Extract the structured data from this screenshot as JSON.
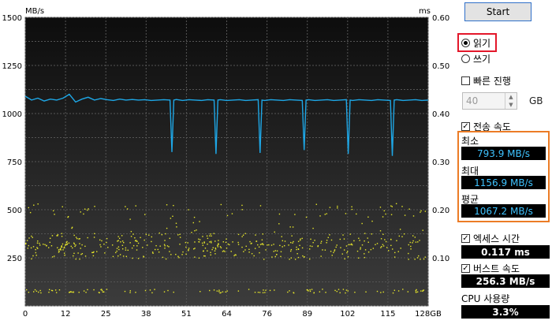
{
  "chart_data": {
    "type": "line",
    "y_left_label": "MB/s",
    "y_right_label": "ms",
    "y_left_ticks": [
      "1500",
      "1250",
      "1000",
      "750",
      "500",
      "250"
    ],
    "y_right_ticks": [
      "0.60",
      "0.50",
      "0.40",
      "0.30",
      "0.20",
      "0.10"
    ],
    "x_ticks": [
      "0",
      "12",
      "25",
      "38",
      "51",
      "64",
      "76",
      "89",
      "102",
      "115",
      "128GB"
    ],
    "xlim": [
      0,
      128
    ],
    "ylim_left": [
      0,
      1500
    ],
    "ylim_right": [
      0,
      0.6
    ],
    "grid": true,
    "colors": {
      "background": "#2b2b2b",
      "grid": "#555555",
      "transfer": "#1ea7e6",
      "access": "#e8e82a"
    },
    "series": [
      {
        "values_desc": "transfer speed",
        "x": [
          0,
          2,
          4,
          6,
          8,
          10,
          12,
          14,
          16,
          18,
          20,
          22,
          24,
          26,
          28,
          30,
          32,
          34,
          36,
          38,
          40,
          42,
          44,
          46,
          46.6,
          47.2,
          48,
          50,
          52,
          54,
          56,
          58,
          60,
          60.6,
          61.2,
          62,
          64,
          66,
          68,
          70,
          72,
          74,
          74.6,
          75.2,
          76,
          78,
          80,
          82,
          84,
          86,
          88,
          88.6,
          89.2,
          90,
          92,
          94,
          96,
          98,
          100,
          102,
          102.6,
          103.2,
          104,
          106,
          108,
          110,
          112,
          114,
          116,
          116.6,
          117.2,
          118,
          120,
          122,
          124,
          126,
          128
        ],
        "y": [
          1090,
          1070,
          1080,
          1065,
          1075,
          1070,
          1080,
          1100,
          1060,
          1075,
          1085,
          1070,
          1078,
          1072,
          1068,
          1075,
          1070,
          1073,
          1070,
          1072,
          1068,
          1070,
          1072,
          1070,
          800,
          1070,
          1073,
          1068,
          1072,
          1070,
          1068,
          1072,
          1070,
          790,
          1070,
          1072,
          1068,
          1070,
          1072,
          1068,
          1070,
          1072,
          795,
          1070,
          1068,
          1072,
          1070,
          1068,
          1072,
          1070,
          1068,
          810,
          1070,
          1072,
          1068,
          1070,
          1072,
          1068,
          1070,
          1072,
          790,
          1070,
          1068,
          1072,
          1070,
          1068,
          1072,
          1070,
          1068,
          780,
          1070,
          1072,
          1068,
          1070,
          1072,
          1068,
          1070
        ]
      }
    ],
    "access_points_ms": [
      0.13,
      0.12,
      0.115,
      0.11,
      0.2,
      0.03
    ]
  },
  "controls": {
    "start_label": "Start",
    "read_label": "읽기",
    "write_label": "쓰기",
    "quick_label": "빠른 진행",
    "size_value": "40",
    "size_unit": "GB",
    "transfer_label": "전송 속도",
    "min_label": "최소",
    "min_value": "793.9 MB/s",
    "max_label": "최대",
    "max_value": "1156.9 MB/s",
    "avg_label": "평균",
    "avg_value": "1067.2 MB/s",
    "access_label": "엑세스 시간",
    "access_value": "0.117 ms",
    "burst_label": "버스트 속도",
    "burst_value": "256.3 MB/s",
    "cpu_label": "CPU 사용량",
    "cpu_value": "3.3%"
  }
}
